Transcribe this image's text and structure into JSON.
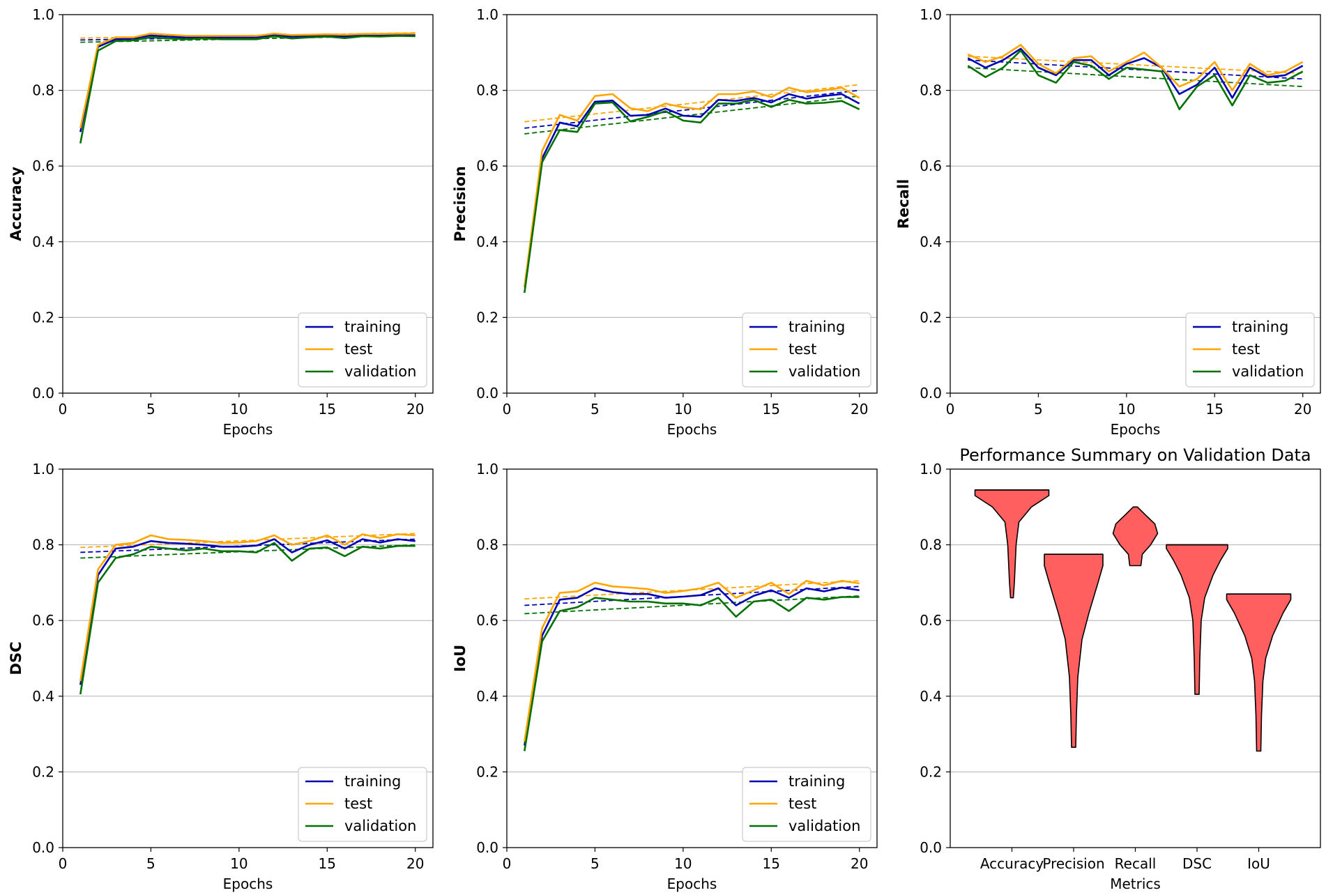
{
  "colors": {
    "training": "#0000b3",
    "test": "#ffa500",
    "validation": "#007000",
    "violin": "#ff5f5f",
    "grid": "#b0b0b0"
  },
  "chart_data": [
    {
      "type": "line",
      "id": "accuracy",
      "title": "",
      "xlabel": "Epochs",
      "ylabel": "Accuracy",
      "xlim": [
        0,
        21
      ],
      "ylim": [
        0,
        1.0
      ],
      "xticks": [
        "0",
        "5",
        "10",
        "15",
        "20"
      ],
      "yticks": [
        "0.0",
        "0.2",
        "0.4",
        "0.6",
        "0.8",
        "1.0"
      ],
      "grid": "y",
      "legend": "bottom-right",
      "x": [
        1,
        2,
        3,
        4,
        5,
        6,
        7,
        8,
        9,
        10,
        11,
        12,
        13,
        14,
        15,
        16,
        17,
        18,
        19,
        20
      ],
      "series": [
        {
          "name": "training",
          "key": "training",
          "values": [
            0.69,
            0.915,
            0.935,
            0.937,
            0.945,
            0.942,
            0.94,
            0.94,
            0.94,
            0.94,
            0.94,
            0.946,
            0.942,
            0.943,
            0.945,
            0.943,
            0.946,
            0.946,
            0.946,
            0.946
          ]
        },
        {
          "name": "test",
          "key": "test",
          "values": [
            0.7,
            0.92,
            0.94,
            0.94,
            0.95,
            0.947,
            0.944,
            0.944,
            0.944,
            0.944,
            0.944,
            0.95,
            0.946,
            0.947,
            0.948,
            0.947,
            0.949,
            0.949,
            0.95,
            0.95
          ]
        },
        {
          "name": "validation",
          "key": "validation",
          "values": [
            0.66,
            0.905,
            0.93,
            0.932,
            0.94,
            0.937,
            0.935,
            0.937,
            0.935,
            0.935,
            0.935,
            0.943,
            0.937,
            0.94,
            0.942,
            0.938,
            0.943,
            0.942,
            0.944,
            0.943
          ]
        }
      ],
      "trends": [
        {
          "key": "training",
          "start": 0.933,
          "end": 0.948
        },
        {
          "key": "test",
          "start": 0.938,
          "end": 0.952
        },
        {
          "key": "validation",
          "start": 0.927,
          "end": 0.945
        }
      ]
    },
    {
      "type": "line",
      "id": "precision",
      "title": "",
      "xlabel": "Epochs",
      "ylabel": "Precision",
      "xlim": [
        0,
        21
      ],
      "ylim": [
        0,
        1.0
      ],
      "xticks": [
        "0",
        "5",
        "10",
        "15",
        "20"
      ],
      "yticks": [
        "0.0",
        "0.2",
        "0.4",
        "0.6",
        "0.8",
        "1.0"
      ],
      "grid": "y",
      "legend": "bottom-right",
      "x": [
        1,
        2,
        3,
        4,
        5,
        6,
        7,
        8,
        9,
        10,
        11,
        12,
        13,
        14,
        15,
        16,
        17,
        18,
        19,
        20
      ],
      "series": [
        {
          "name": "training",
          "key": "training",
          "values": [
            0.28,
            0.62,
            0.715,
            0.705,
            0.77,
            0.773,
            0.733,
            0.735,
            0.752,
            0.733,
            0.73,
            0.775,
            0.772,
            0.78,
            0.768,
            0.79,
            0.778,
            0.785,
            0.79,
            0.765
          ]
        },
        {
          "name": "test",
          "key": "test",
          "values": [
            0.28,
            0.64,
            0.735,
            0.72,
            0.785,
            0.79,
            0.753,
            0.745,
            0.765,
            0.755,
            0.75,
            0.79,
            0.79,
            0.797,
            0.782,
            0.807,
            0.795,
            0.8,
            0.807,
            0.78
          ]
        },
        {
          "name": "validation",
          "key": "validation",
          "values": [
            0.265,
            0.61,
            0.695,
            0.69,
            0.765,
            0.768,
            0.718,
            0.73,
            0.745,
            0.72,
            0.715,
            0.765,
            0.765,
            0.775,
            0.756,
            0.775,
            0.765,
            0.767,
            0.772,
            0.75
          ]
        }
      ],
      "trends": [
        {
          "key": "training",
          "start": 0.7,
          "end": 0.8
        },
        {
          "key": "test",
          "start": 0.717,
          "end": 0.815
        },
        {
          "key": "validation",
          "start": 0.685,
          "end": 0.785
        }
      ]
    },
    {
      "type": "line",
      "id": "recall",
      "title": "",
      "xlabel": "Epochs",
      "ylabel": "Recall",
      "xlim": [
        0,
        21
      ],
      "ylim": [
        0,
        1.0
      ],
      "xticks": [
        "0",
        "5",
        "10",
        "15",
        "20"
      ],
      "yticks": [
        "0.0",
        "0.2",
        "0.4",
        "0.6",
        "0.8",
        "1.0"
      ],
      "grid": "y",
      "legend": "bottom-right",
      "x": [
        1,
        2,
        3,
        4,
        5,
        6,
        7,
        8,
        9,
        10,
        11,
        12,
        13,
        14,
        15,
        16,
        17,
        18,
        19,
        20
      ],
      "series": [
        {
          "name": "training",
          "key": "training",
          "values": [
            0.885,
            0.86,
            0.88,
            0.91,
            0.86,
            0.84,
            0.88,
            0.88,
            0.84,
            0.87,
            0.885,
            0.86,
            0.79,
            0.815,
            0.86,
            0.78,
            0.86,
            0.835,
            0.84,
            0.865
          ]
        },
        {
          "name": "test",
          "key": "test",
          "values": [
            0.895,
            0.875,
            0.89,
            0.92,
            0.87,
            0.845,
            0.885,
            0.89,
            0.85,
            0.875,
            0.9,
            0.86,
            0.81,
            0.83,
            0.875,
            0.8,
            0.87,
            0.84,
            0.85,
            0.875
          ]
        },
        {
          "name": "validation",
          "key": "validation",
          "values": [
            0.865,
            0.835,
            0.86,
            0.905,
            0.84,
            0.82,
            0.875,
            0.865,
            0.83,
            0.86,
            0.855,
            0.85,
            0.75,
            0.81,
            0.84,
            0.76,
            0.84,
            0.82,
            0.825,
            0.85
          ]
        }
      ],
      "trends": [
        {
          "key": "training",
          "start": 0.88,
          "end": 0.83
        },
        {
          "key": "test",
          "start": 0.89,
          "end": 0.845
        },
        {
          "key": "validation",
          "start": 0.86,
          "end": 0.81
        }
      ]
    },
    {
      "type": "line",
      "id": "dsc",
      "title": "",
      "xlabel": "Epochs",
      "ylabel": "DSC",
      "xlim": [
        0,
        21
      ],
      "ylim": [
        0,
        1.0
      ],
      "xticks": [
        "0",
        "5",
        "10",
        "15",
        "20"
      ],
      "yticks": [
        "0.0",
        "0.2",
        "0.4",
        "0.6",
        "0.8",
        "1.0"
      ],
      "grid": "y",
      "legend": "bottom-right",
      "x": [
        1,
        2,
        3,
        4,
        5,
        6,
        7,
        8,
        9,
        10,
        11,
        12,
        13,
        14,
        15,
        16,
        17,
        18,
        19,
        20
      ],
      "series": [
        {
          "name": "training",
          "key": "training",
          "values": [
            0.43,
            0.72,
            0.79,
            0.795,
            0.81,
            0.805,
            0.803,
            0.8,
            0.795,
            0.795,
            0.798,
            0.815,
            0.78,
            0.8,
            0.812,
            0.79,
            0.815,
            0.806,
            0.815,
            0.81
          ]
        },
        {
          "name": "test",
          "key": "test",
          "values": [
            0.44,
            0.735,
            0.8,
            0.805,
            0.825,
            0.815,
            0.813,
            0.81,
            0.805,
            0.806,
            0.81,
            0.825,
            0.8,
            0.81,
            0.825,
            0.8,
            0.828,
            0.818,
            0.828,
            0.825
          ]
        },
        {
          "name": "validation",
          "key": "validation",
          "values": [
            0.405,
            0.7,
            0.765,
            0.775,
            0.795,
            0.79,
            0.785,
            0.79,
            0.783,
            0.783,
            0.78,
            0.805,
            0.758,
            0.79,
            0.793,
            0.77,
            0.795,
            0.79,
            0.797,
            0.797
          ]
        }
      ],
      "trends": [
        {
          "key": "training",
          "start": 0.78,
          "end": 0.815
        },
        {
          "key": "test",
          "start": 0.793,
          "end": 0.83
        },
        {
          "key": "validation",
          "start": 0.765,
          "end": 0.8
        }
      ]
    },
    {
      "type": "line",
      "id": "iou",
      "title": "",
      "xlabel": "Epochs",
      "ylabel": "IoU",
      "xlim": [
        0,
        21
      ],
      "ylim": [
        0,
        1.0
      ],
      "xticks": [
        "0",
        "5",
        "10",
        "15",
        "20"
      ],
      "yticks": [
        "0.0",
        "0.2",
        "0.4",
        "0.6",
        "0.8",
        "1.0"
      ],
      "grid": "y",
      "legend": "bottom-right",
      "x": [
        1,
        2,
        3,
        4,
        5,
        6,
        7,
        8,
        9,
        10,
        11,
        12,
        13,
        14,
        15,
        16,
        17,
        18,
        19,
        20
      ],
      "series": [
        {
          "name": "training",
          "key": "training",
          "values": [
            0.27,
            0.56,
            0.655,
            0.66,
            0.685,
            0.675,
            0.67,
            0.67,
            0.66,
            0.663,
            0.667,
            0.685,
            0.64,
            0.665,
            0.68,
            0.66,
            0.685,
            0.677,
            0.687,
            0.68
          ]
        },
        {
          "name": "test",
          "key": "test",
          "values": [
            0.28,
            0.58,
            0.673,
            0.677,
            0.7,
            0.69,
            0.687,
            0.683,
            0.673,
            0.678,
            0.685,
            0.7,
            0.66,
            0.68,
            0.7,
            0.67,
            0.705,
            0.693,
            0.705,
            0.698
          ]
        },
        {
          "name": "validation",
          "key": "validation",
          "values": [
            0.255,
            0.545,
            0.625,
            0.635,
            0.66,
            0.655,
            0.65,
            0.65,
            0.645,
            0.645,
            0.64,
            0.66,
            0.61,
            0.65,
            0.655,
            0.625,
            0.66,
            0.655,
            0.662,
            0.662
          ]
        }
      ],
      "trends": [
        {
          "key": "training",
          "start": 0.64,
          "end": 0.69
        },
        {
          "key": "test",
          "start": 0.657,
          "end": 0.705
        },
        {
          "key": "validation",
          "start": 0.618,
          "end": 0.665
        }
      ]
    },
    {
      "type": "violin",
      "id": "summary",
      "title": "Performance Summary on Validation Data",
      "xlabel": "Metrics",
      "ylabel": "",
      "ylim": [
        0,
        1.0
      ],
      "yticks": [
        "0.0",
        "0.2",
        "0.4",
        "0.6",
        "0.8",
        "1.0"
      ],
      "grid": "y",
      "categories": [
        "Accuracy",
        "Precision",
        "Recall",
        "DSC",
        "IoU"
      ],
      "violins": [
        {
          "name": "Accuracy",
          "min": 0.66,
          "max": 0.945,
          "profile": [
            [
              0.66,
              0.2
            ],
            [
              0.7,
              0.35
            ],
            [
              0.8,
              0.6
            ],
            [
              0.86,
              1.0
            ],
            [
              0.9,
              2.8
            ],
            [
              0.93,
              5.3
            ],
            [
              0.945,
              5.3
            ]
          ]
        },
        {
          "name": "Precision",
          "min": 0.265,
          "max": 0.775,
          "profile": [
            [
              0.265,
              0.3
            ],
            [
              0.35,
              0.4
            ],
            [
              0.45,
              0.6
            ],
            [
              0.55,
              1.2
            ],
            [
              0.62,
              2.2
            ],
            [
              0.7,
              3.5
            ],
            [
              0.745,
              4.2
            ],
            [
              0.775,
              4.2
            ]
          ]
        },
        {
          "name": "Recall",
          "min": 0.745,
          "max": 0.9,
          "profile": [
            [
              0.745,
              0.8
            ],
            [
              0.775,
              1.0
            ],
            [
              0.8,
              2.2
            ],
            [
              0.83,
              3.2
            ],
            [
              0.855,
              2.8
            ],
            [
              0.88,
              1.4
            ],
            [
              0.9,
              0.3
            ]
          ]
        },
        {
          "name": "DSC",
          "min": 0.405,
          "max": 0.8,
          "profile": [
            [
              0.405,
              0.3
            ],
            [
              0.5,
              0.4
            ],
            [
              0.6,
              0.6
            ],
            [
              0.66,
              1.1
            ],
            [
              0.72,
              2.3
            ],
            [
              0.76,
              3.4
            ],
            [
              0.79,
              4.4
            ],
            [
              0.8,
              4.4
            ]
          ]
        },
        {
          "name": "IoU",
          "min": 0.255,
          "max": 0.67,
          "profile": [
            [
              0.255,
              0.3
            ],
            [
              0.35,
              0.4
            ],
            [
              0.44,
              0.6
            ],
            [
              0.5,
              1.0
            ],
            [
              0.56,
              2.0
            ],
            [
              0.62,
              3.5
            ],
            [
              0.655,
              4.6
            ],
            [
              0.67,
              4.6
            ]
          ]
        }
      ]
    }
  ]
}
